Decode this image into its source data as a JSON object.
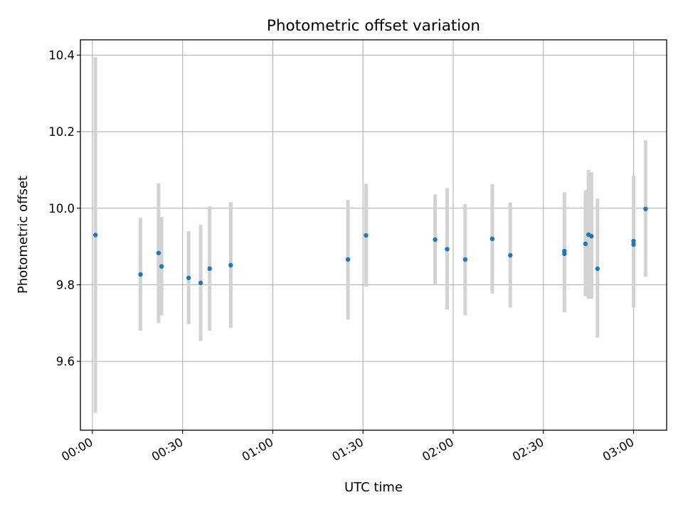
{
  "chart_data": {
    "type": "scatter",
    "title": "Photometric offset variation",
    "xlabel": "UTC time",
    "ylabel": "Photometric offset",
    "x_unit": "HH:MM",
    "xlim": [
      "-00:04",
      "03:11"
    ],
    "ylim": [
      9.42,
      10.44
    ],
    "x_ticks": [
      "00:00",
      "00:30",
      "01:00",
      "01:30",
      "02:00",
      "02:30",
      "03:00"
    ],
    "y_ticks": [
      9.6,
      9.8,
      10.0,
      10.2,
      10.4
    ],
    "y_tick_labels": [
      "9.6",
      "9.8",
      "10.0",
      "10.2",
      "10.4"
    ],
    "x_tick_label_rotation": "30°",
    "grid": true,
    "legend": "none",
    "marker_color": "#1f77b4",
    "errorbar_color": "#d3d3d3",
    "points": [
      {
        "x": "00:01",
        "y": 9.93,
        "ylow": 9.465,
        "yhigh": 10.395
      },
      {
        "x": "00:16",
        "y": 9.827,
        "ylow": 9.68,
        "yhigh": 9.975
      },
      {
        "x": "00:22",
        "y": 9.883,
        "ylow": 9.7,
        "yhigh": 10.065
      },
      {
        "x": "00:23",
        "y": 9.848,
        "ylow": 9.72,
        "yhigh": 9.977
      },
      {
        "x": "00:32",
        "y": 9.818,
        "ylow": 9.697,
        "yhigh": 9.94
      },
      {
        "x": "00:36",
        "y": 9.805,
        "ylow": 9.653,
        "yhigh": 9.957
      },
      {
        "x": "00:39",
        "y": 9.842,
        "ylow": 9.68,
        "yhigh": 10.005
      },
      {
        "x": "00:46",
        "y": 9.851,
        "ylow": 9.687,
        "yhigh": 10.016
      },
      {
        "x": "01:25",
        "y": 9.866,
        "ylow": 9.709,
        "yhigh": 10.022
      },
      {
        "x": "01:31",
        "y": 9.929,
        "ylow": 9.795,
        "yhigh": 10.064
      },
      {
        "x": "01:54",
        "y": 9.918,
        "ylow": 9.8,
        "yhigh": 10.036
      },
      {
        "x": "01:58",
        "y": 9.893,
        "ylow": 9.735,
        "yhigh": 10.053
      },
      {
        "x": "02:04",
        "y": 9.866,
        "ylow": 9.72,
        "yhigh": 10.011
      },
      {
        "x": "02:13",
        "y": 9.92,
        "ylow": 9.777,
        "yhigh": 10.063
      },
      {
        "x": "02:19",
        "y": 9.877,
        "ylow": 9.74,
        "yhigh": 10.015
      },
      {
        "x": "02:37",
        "y": 9.888,
        "ylow": 9.73,
        "yhigh": 10.042
      },
      {
        "x": "02:37",
        "y": 9.881,
        "ylow": 9.728,
        "yhigh": 10.034
      },
      {
        "x": "02:44",
        "y": 9.907,
        "ylow": 9.77,
        "yhigh": 10.047
      },
      {
        "x": "02:45",
        "y": 9.931,
        "ylow": 9.763,
        "yhigh": 10.1
      },
      {
        "x": "02:46",
        "y": 9.927,
        "ylow": 9.763,
        "yhigh": 10.094
      },
      {
        "x": "02:48",
        "y": 9.842,
        "ylow": 9.662,
        "yhigh": 10.025
      },
      {
        "x": "03:00",
        "y": 9.905,
        "ylow": 9.74,
        "yhigh": 10.068
      },
      {
        "x": "03:00",
        "y": 9.914,
        "ylow": 9.742,
        "yhigh": 10.086
      },
      {
        "x": "03:04",
        "y": 9.998,
        "ylow": 9.821,
        "yhigh": 10.177
      }
    ]
  }
}
